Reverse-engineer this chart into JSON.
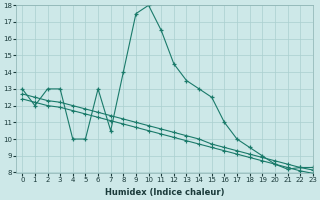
{
  "xlabel": "Humidex (Indice chaleur)",
  "bg_color": "#cde8e8",
  "line_color": "#1a7a6a",
  "grid_color": "#aacfcf",
  "line1_x": [
    0,
    1,
    2,
    3,
    4,
    5,
    6,
    7,
    8,
    9,
    10,
    11,
    12,
    13,
    14,
    15,
    16,
    17,
    18,
    19,
    20,
    21,
    22,
    23
  ],
  "line1_y": [
    13,
    12,
    13,
    13,
    10,
    10,
    13,
    10.5,
    14,
    17.5,
    18,
    16.5,
    14.5,
    13.5,
    13,
    12.5,
    11,
    10,
    9.5,
    9,
    8.5,
    8.2,
    8.3,
    8.3
  ],
  "line2_x": [
    0,
    1,
    2,
    3,
    4,
    5,
    6,
    7,
    8,
    9,
    10,
    11,
    12,
    13,
    14,
    15,
    16,
    17,
    18,
    19,
    20,
    21,
    22,
    23
  ],
  "line2_y": [
    12.7,
    12.5,
    12.3,
    12.2,
    12.0,
    11.8,
    11.6,
    11.4,
    11.2,
    11.0,
    10.8,
    10.6,
    10.4,
    10.2,
    10.0,
    9.7,
    9.5,
    9.3,
    9.1,
    8.9,
    8.7,
    8.5,
    8.3,
    8.15
  ],
  "line3_x": [
    0,
    1,
    2,
    3,
    4,
    5,
    6,
    7,
    8,
    9,
    10,
    11,
    12,
    13,
    14,
    15,
    16,
    17,
    18,
    19,
    20,
    21,
    22,
    23
  ],
  "line3_y": [
    12.4,
    12.2,
    12.0,
    11.9,
    11.7,
    11.5,
    11.3,
    11.1,
    10.9,
    10.7,
    10.5,
    10.3,
    10.1,
    9.9,
    9.7,
    9.5,
    9.3,
    9.1,
    8.9,
    8.7,
    8.5,
    8.3,
    8.1,
    7.95
  ],
  "ylim": [
    8,
    18
  ],
  "xlim": [
    -0.5,
    23
  ],
  "yticks": [
    8,
    9,
    10,
    11,
    12,
    13,
    14,
    15,
    16,
    17,
    18
  ],
  "xticks": [
    0,
    1,
    2,
    3,
    4,
    5,
    6,
    7,
    8,
    9,
    10,
    11,
    12,
    13,
    14,
    15,
    16,
    17,
    18,
    19,
    20,
    21,
    22,
    23
  ]
}
